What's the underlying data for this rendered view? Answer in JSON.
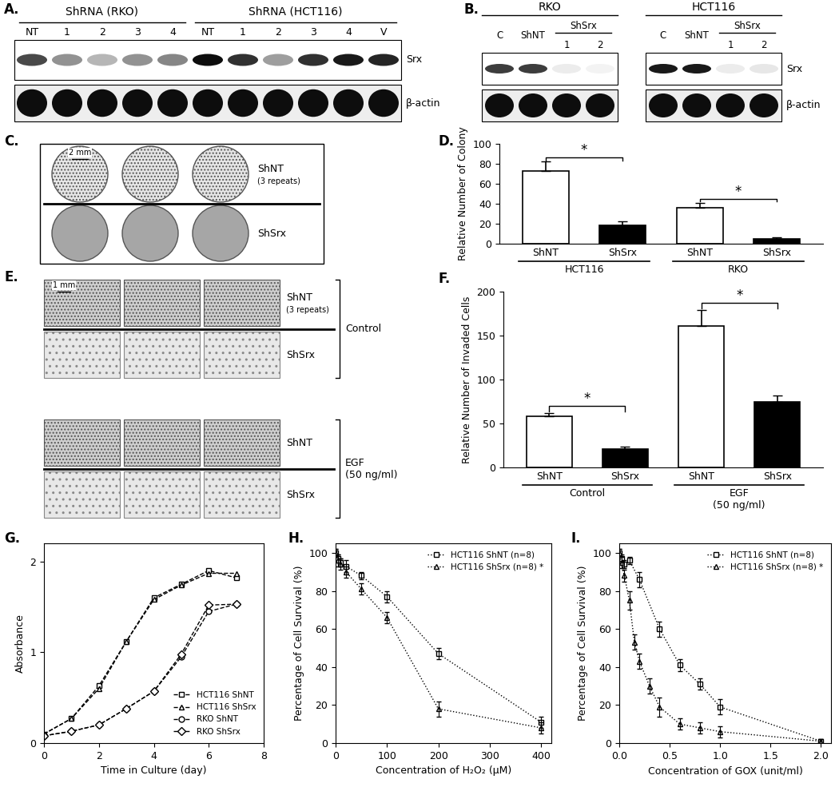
{
  "panels": {
    "A": {
      "label": "A.",
      "groups": [
        {
          "label": "ShRNA (RKO)",
          "lanes": [
            "NT",
            "1",
            "2",
            "3",
            "4"
          ]
        },
        {
          "label": "ShRNA (HCT116)",
          "lanes": [
            "NT",
            "1",
            "2",
            "3",
            "4",
            "V"
          ]
        }
      ],
      "rows": [
        {
          "label": "Srx",
          "intensity": [
            0.75,
            0.45,
            0.3,
            0.45,
            0.5,
            1.0,
            0.85,
            0.4,
            0.85,
            0.95,
            0.9
          ]
        },
        {
          "label": "β-actin",
          "intensity": [
            1,
            1,
            1,
            1,
            1,
            1,
            1,
            1,
            1,
            1,
            1
          ]
        }
      ]
    },
    "B": {
      "label": "B.",
      "rows": [
        "Srx",
        "β-actin"
      ],
      "blots": [
        {
          "title": "RKO",
          "lanes": [
            "C",
            "ShNT",
            "1",
            "2"
          ],
          "subgroup": {
            "label": "ShSrx",
            "lanes": [
              2,
              3
            ]
          },
          "intensity": [
            [
              0.8,
              0.8,
              0.08,
              0.05
            ],
            [
              1,
              1,
              1,
              1
            ]
          ]
        },
        {
          "title": "HCT116",
          "lanes": [
            "C",
            "ShNT",
            "1",
            "2"
          ],
          "subgroup": {
            "label": "ShSrx",
            "lanes": [
              2,
              3
            ]
          },
          "intensity": [
            [
              0.95,
              0.95,
              0.08,
              0.1
            ],
            [
              1,
              1,
              1,
              1
            ]
          ]
        }
      ]
    },
    "C": {
      "label": "C.",
      "scale_bar": "2 mm",
      "columns": 3,
      "rows": [
        {
          "label": "ShNT",
          "note": "(3 repeats)"
        },
        {
          "label": "ShSrx"
        }
      ]
    },
    "E": {
      "label": "E.",
      "scale_bar": "1 mm",
      "columns": 3,
      "rows": [
        {
          "label": "ShNT",
          "note": "(3 repeats)"
        },
        {
          "label": "ShSrx"
        },
        {
          "label": "ShNT"
        },
        {
          "label": "ShSrx"
        }
      ],
      "groups": [
        {
          "label": "Control",
          "rows": [
            0,
            1
          ]
        },
        {
          "label": "EGF\n(50 ng/ml)",
          "rows": [
            2,
            3
          ]
        }
      ]
    }
  },
  "chart_data": [
    {
      "panel_label": "D.",
      "type": "bar",
      "y_label": "Relative Number of Colony",
      "categories": [
        "ShNT",
        "ShSrx",
        "ShNT",
        "ShSrx"
      ],
      "values": [
        73,
        18,
        36,
        5
      ],
      "errors": [
        9,
        4,
        5,
        1
      ],
      "colors": [
        "#ffffff",
        "#000000",
        "#ffffff",
        "#000000"
      ],
      "groups": [
        {
          "label": "HCT116",
          "members": [
            0,
            1
          ]
        },
        {
          "label": "RKO",
          "members": [
            2,
            3
          ]
        }
      ],
      "significance": [
        {
          "pair": [
            0,
            1
          ],
          "label": "*"
        },
        {
          "pair": [
            2,
            3
          ],
          "label": "*"
        }
      ],
      "ylim": [
        0,
        100
      ],
      "yticks": [
        0,
        20,
        40,
        60,
        80,
        100
      ],
      "grid": false
    },
    {
      "panel_label": "F.",
      "type": "bar",
      "y_label": "Relative Number of Invaded Cells",
      "categories": [
        "ShNT",
        "ShSrx",
        "ShNT",
        "ShSrx"
      ],
      "values": [
        58,
        21,
        161,
        75
      ],
      "errors": [
        4,
        3,
        18,
        7
      ],
      "colors": [
        "#ffffff",
        "#000000",
        "#ffffff",
        "#000000"
      ],
      "groups": [
        {
          "label": "Control",
          "members": [
            0,
            1
          ]
        },
        {
          "label": "EGF\n(50 ng/ml)",
          "members": [
            2,
            3
          ]
        }
      ],
      "significance": [
        {
          "pair": [
            0,
            1
          ],
          "label": "*"
        },
        {
          "pair": [
            2,
            3
          ],
          "label": "*"
        }
      ],
      "ylim": [
        0,
        200
      ],
      "yticks": [
        0,
        50,
        100,
        150,
        200
      ],
      "grid": false
    },
    {
      "panel_label": "G.",
      "type": "line",
      "x_label": "Time in Culture (day)",
      "y_label": "Absorbance",
      "xlim": [
        0,
        8
      ],
      "xticks": [
        0,
        2,
        4,
        6,
        8
      ],
      "ylim": [
        0,
        2.2
      ],
      "yticks": [
        0,
        1,
        2
      ],
      "legend": "lower right",
      "grid": false,
      "series": [
        {
          "name": "HCT116 ShNT",
          "color": "#000000",
          "marker": "square",
          "line_style": "dashed",
          "x": [
            0,
            1,
            2,
            3,
            4,
            5,
            6,
            7
          ],
          "values": [
            0.1,
            0.27,
            0.63,
            1.12,
            1.6,
            1.75,
            1.9,
            1.82
          ]
        },
        {
          "name": "HCT116 ShSrx",
          "color": "#000000",
          "marker": "triangle",
          "line_style": "dashed",
          "x": [
            0,
            1,
            2,
            3,
            4,
            5,
            6,
            7
          ],
          "values": [
            0.1,
            0.27,
            0.6,
            1.12,
            1.58,
            1.74,
            1.87,
            1.87
          ]
        },
        {
          "name": "RKO ShNT",
          "color": "#000000",
          "marker": "circle",
          "line_style": "dashed",
          "x": [
            0,
            1,
            2,
            3,
            4,
            5,
            6,
            7
          ],
          "values": [
            0.08,
            0.13,
            0.2,
            0.38,
            0.57,
            0.95,
            1.45,
            1.53
          ]
        },
        {
          "name": "RKO ShSrx",
          "color": "#000000",
          "marker": "diamond",
          "line_style": "dashed",
          "x": [
            0,
            1,
            2,
            3,
            4,
            5,
            6,
            7
          ],
          "values": [
            0.08,
            0.13,
            0.2,
            0.38,
            0.57,
            0.98,
            1.52,
            1.53
          ]
        }
      ]
    },
    {
      "panel_label": "H.",
      "type": "line",
      "x_label": "Concentration of H₂O₂ (μM)",
      "y_label": "Percentage of Cell Survival (%)",
      "xlim": [
        0,
        420
      ],
      "xticks": [
        0,
        100,
        200,
        300,
        400
      ],
      "ylim": [
        0,
        105
      ],
      "yticks": [
        0,
        20,
        40,
        60,
        80,
        100
      ],
      "legend": "upper right",
      "grid": false,
      "series": [
        {
          "name": "HCT116 ShNT (n=8)",
          "color": "#000000",
          "marker": "square",
          "line_style": "dotted",
          "x": [
            0,
            5,
            10,
            20,
            50,
            100,
            200,
            400
          ],
          "values": [
            100,
            97,
            95,
            93,
            88,
            77,
            47,
            11
          ],
          "errors": [
            2,
            2,
            2,
            3,
            2,
            3,
            3,
            3
          ]
        },
        {
          "name": "HCT116 ShSrx (n=8) *",
          "color": "#000000",
          "marker": "triangle",
          "line_style": "dotted",
          "x": [
            0,
            5,
            10,
            20,
            50,
            100,
            200,
            400
          ],
          "values": [
            100,
            96,
            94,
            90,
            81,
            66,
            18,
            8
          ],
          "errors": [
            2,
            3,
            3,
            3,
            3,
            3,
            4,
            3
          ]
        }
      ]
    },
    {
      "panel_label": "I.",
      "type": "line",
      "x_label": "Concentration of GOX (unit/ml)",
      "y_label": "Percentage of Cell Survival (%)",
      "xlim": [
        0,
        2.1
      ],
      "xticks": [
        {
          "value": 0,
          "label": "0.0"
        },
        0.5,
        {
          "value": 1,
          "label": "1.0"
        },
        1.5,
        {
          "value": 2,
          "label": "2.0"
        }
      ],
      "ylim": [
        0,
        105
      ],
      "yticks": [
        0,
        20,
        40,
        60,
        80,
        100
      ],
      "legend": "upper right",
      "grid": false,
      "series": [
        {
          "name": "HCT116 ShNT (n=8)",
          "color": "#000000",
          "marker": "square",
          "line_style": "dotted",
          "x": [
            0,
            0.02,
            0.05,
            0.1,
            0.2,
            0.4,
            0.6,
            0.8,
            1.0,
            2.0
          ],
          "values": [
            100,
            97,
            94,
            96,
            86,
            60,
            41,
            31,
            19,
            1
          ],
          "errors": [
            2,
            2,
            2,
            2,
            4,
            4,
            3,
            3,
            4,
            1
          ]
        },
        {
          "name": "HCT116 ShSrx (n=8) *",
          "color": "#000000",
          "marker": "triangle",
          "line_style": "dotted",
          "x": [
            0,
            0.02,
            0.05,
            0.1,
            0.15,
            0.2,
            0.3,
            0.4,
            0.6,
            0.8,
            1.0,
            2.0
          ],
          "values": [
            100,
            95,
            88,
            75,
            53,
            43,
            30,
            19,
            10,
            8,
            6,
            1
          ],
          "errors": [
            2,
            3,
            3,
            5,
            4,
            4,
            4,
            5,
            3,
            3,
            3,
            1
          ]
        }
      ]
    }
  ]
}
